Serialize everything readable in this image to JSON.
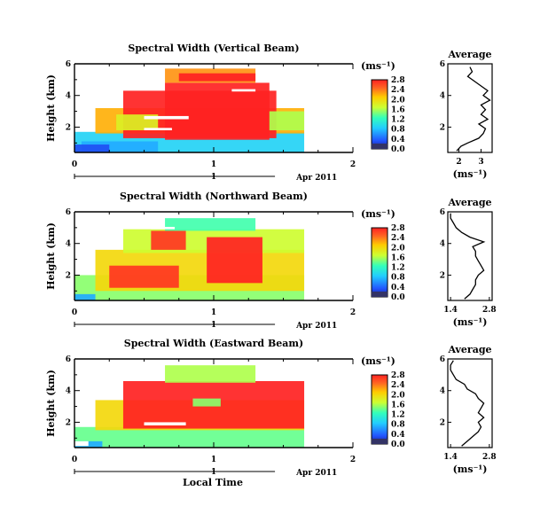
{
  "figure": {
    "xlabel": "Local Time",
    "date_label": "Apr 2011",
    "unit_label": "(ms⁻¹)",
    "ylabel": "Height (km)",
    "avg_title": "Average",
    "avg_xlabel": "(ms⁻¹)"
  },
  "chart_data": [
    {
      "type": "heatmap",
      "title": "Spectral Width (Vertical Beam)",
      "ylabel": "Height (km)",
      "xlim": [
        0,
        2
      ],
      "ylim": [
        0.4,
        6
      ],
      "x_ticks": [
        "0",
        "1",
        "2"
      ],
      "y_ticks": [
        "2",
        "4",
        "6"
      ],
      "colorbar": {
        "unit": "(ms⁻¹)",
        "range": [
          0,
          2.8
        ],
        "ticks": [
          "2.8",
          "2.4",
          "2.0",
          "1.6",
          "1.2",
          "0.8",
          "0.4",
          "0.0"
        ]
      },
      "cells": [
        {
          "x0": 0.0,
          "x1": 1.65,
          "y0": 0.4,
          "y1": 1.7,
          "v": 0.9
        },
        {
          "x0": 0.15,
          "x1": 1.65,
          "y0": 1.6,
          "y1": 3.2,
          "v": 2.2
        },
        {
          "x0": 0.35,
          "x1": 1.45,
          "y0": 1.3,
          "y1": 4.3,
          "v": 2.8
        },
        {
          "x0": 0.65,
          "x1": 1.4,
          "y0": 1.2,
          "y1": 4.8,
          "v": 2.8
        },
        {
          "x0": 0.65,
          "x1": 1.3,
          "y0": 4.8,
          "y1": 5.7,
          "v": 2.3
        },
        {
          "x0": 0.75,
          "x1": 1.3,
          "y0": 4.9,
          "y1": 5.4,
          "v": 2.8
        },
        {
          "x0": 0.3,
          "x1": 0.6,
          "y0": 1.8,
          "y1": 2.8,
          "v": 1.8
        },
        {
          "x0": 1.4,
          "x1": 1.65,
          "y0": 1.8,
          "y1": 3.0,
          "v": 1.6
        },
        {
          "x0": 0.05,
          "x1": 0.6,
          "y0": 0.4,
          "y1": 1.1,
          "v": 0.7
        },
        {
          "x0": 0.0,
          "x1": 0.25,
          "y0": 0.4,
          "y1": 0.9,
          "v": 0.3
        }
      ],
      "gaps": [
        {
          "x0": 0.5,
          "x1": 0.82,
          "y0": 2.5,
          "y1": 2.7
        },
        {
          "x0": 0.5,
          "x1": 0.7,
          "y0": 1.8,
          "y1": 1.95
        },
        {
          "x0": 1.13,
          "x1": 1.3,
          "y0": 4.25,
          "y1": 4.4
        }
      ],
      "profile": {
        "xlim": [
          1.5,
          3.5
        ],
        "x_ticks": [
          "2",
          "3"
        ],
        "y": [
          0.5,
          0.8,
          1.0,
          1.3,
          1.6,
          1.9,
          2.2,
          2.5,
          2.8,
          3.1,
          3.4,
          3.7,
          4.0,
          4.3,
          4.6,
          4.9,
          5.2,
          5.5,
          5.8
        ],
        "x": [
          1.9,
          2.1,
          2.4,
          2.9,
          3.1,
          3.2,
          2.9,
          3.3,
          3.0,
          3.2,
          3.0,
          3.4,
          3.1,
          3.3,
          3.0,
          2.7,
          2.4,
          2.6,
          2.5
        ]
      }
    },
    {
      "type": "heatmap",
      "title": "Spectral Width (Northward Beam)",
      "ylabel": "Height (km)",
      "xlim": [
        0,
        2
      ],
      "ylim": [
        0.4,
        6
      ],
      "x_ticks": [
        "0",
        "1",
        "2"
      ],
      "y_ticks": [
        "2",
        "4",
        "6"
      ],
      "colorbar": {
        "unit": "(ms⁻¹)",
        "range": [
          0,
          2.8
        ],
        "ticks": [
          "2.8",
          "2.4",
          "2.0",
          "1.6",
          "1.2",
          "0.8",
          "0.4",
          "0.0"
        ]
      },
      "cells": [
        {
          "x0": 0.0,
          "x1": 1.65,
          "y0": 0.4,
          "y1": 2.0,
          "v": 1.5
        },
        {
          "x0": 0.15,
          "x1": 1.65,
          "y0": 1.0,
          "y1": 3.6,
          "v": 2.0
        },
        {
          "x0": 0.35,
          "x1": 1.65,
          "y0": 3.4,
          "y1": 4.9,
          "v": 1.7
        },
        {
          "x0": 0.65,
          "x1": 1.3,
          "y0": 4.8,
          "y1": 5.6,
          "v": 1.3
        },
        {
          "x0": 0.25,
          "x1": 0.75,
          "y0": 1.2,
          "y1": 2.6,
          "v": 2.7
        },
        {
          "x0": 0.55,
          "x1": 0.8,
          "y0": 3.6,
          "y1": 4.8,
          "v": 2.7
        },
        {
          "x0": 0.95,
          "x1": 1.35,
          "y0": 1.5,
          "y1": 4.4,
          "v": 2.8
        },
        {
          "x0": 0.0,
          "x1": 0.15,
          "y0": 0.4,
          "y1": 0.8,
          "v": 0.7
        }
      ],
      "gaps": [
        {
          "x0": 0.55,
          "x1": 0.72,
          "y0": 4.9,
          "y1": 5.05
        }
      ],
      "profile": {
        "xlim": [
          1.3,
          2.9
        ],
        "x_ticks": [
          "1.4",
          "2.8"
        ],
        "y": [
          0.5,
          0.8,
          1.1,
          1.4,
          1.7,
          2.0,
          2.3,
          2.6,
          2.9,
          3.2,
          3.5,
          3.8,
          4.1,
          4.4,
          4.7,
          5.0,
          5.3,
          5.6,
          5.9
        ],
        "x": [
          1.9,
          2.1,
          2.2,
          2.3,
          2.3,
          2.4,
          2.6,
          2.5,
          2.4,
          2.3,
          2.3,
          2.2,
          2.6,
          2.1,
          1.8,
          1.6,
          1.5,
          1.4,
          1.4
        ]
      }
    },
    {
      "type": "heatmap",
      "title": "Spectral Width (Eastward Beam)",
      "ylabel": "Height (km)",
      "xlim": [
        0,
        2
      ],
      "ylim": [
        0.4,
        6
      ],
      "x_ticks": [
        "0",
        "1",
        "2"
      ],
      "y_ticks": [
        "2",
        "4",
        "6"
      ],
      "colorbar": {
        "unit": "(ms⁻¹)",
        "range": [
          0,
          2.8
        ],
        "ticks": [
          "2.8",
          "2.4",
          "2.0",
          "1.6",
          "1.2",
          "0.8",
          "0.4",
          "0.0"
        ]
      },
      "cells": [
        {
          "x0": 0.0,
          "x1": 1.65,
          "y0": 0.4,
          "y1": 1.7,
          "v": 1.4
        },
        {
          "x0": 0.15,
          "x1": 1.65,
          "y0": 1.5,
          "y1": 3.4,
          "v": 2.0
        },
        {
          "x0": 0.35,
          "x1": 1.65,
          "y0": 1.6,
          "y1": 4.6,
          "v": 2.8
        },
        {
          "x0": 0.65,
          "x1": 1.3,
          "y0": 4.5,
          "y1": 5.6,
          "v": 1.6
        },
        {
          "x0": 0.85,
          "x1": 1.05,
          "y0": 3.0,
          "y1": 3.5,
          "v": 1.5
        },
        {
          "x0": 0.0,
          "x1": 0.2,
          "y0": 0.4,
          "y1": 0.8,
          "v": 0.7
        }
      ],
      "gaps": [
        {
          "x0": 0.5,
          "x1": 0.8,
          "y0": 1.8,
          "y1": 2.0
        },
        {
          "x0": 0.0,
          "x1": 0.1,
          "y0": 0.5,
          "y1": 0.8
        }
      ],
      "profile": {
        "xlim": [
          1.3,
          2.9
        ],
        "x_ticks": [
          "1.4",
          "2.8"
        ],
        "y": [
          0.5,
          0.8,
          1.1,
          1.4,
          1.7,
          2.0,
          2.3,
          2.6,
          2.9,
          3.2,
          3.5,
          3.8,
          4.1,
          4.4,
          4.7,
          5.0,
          5.3,
          5.6,
          5.9
        ],
        "x": [
          1.8,
          2.0,
          2.2,
          2.4,
          2.5,
          2.4,
          2.6,
          2.4,
          2.5,
          2.6,
          2.4,
          2.3,
          2.0,
          1.9,
          1.6,
          1.5,
          1.4,
          1.4,
          1.5
        ]
      }
    }
  ]
}
